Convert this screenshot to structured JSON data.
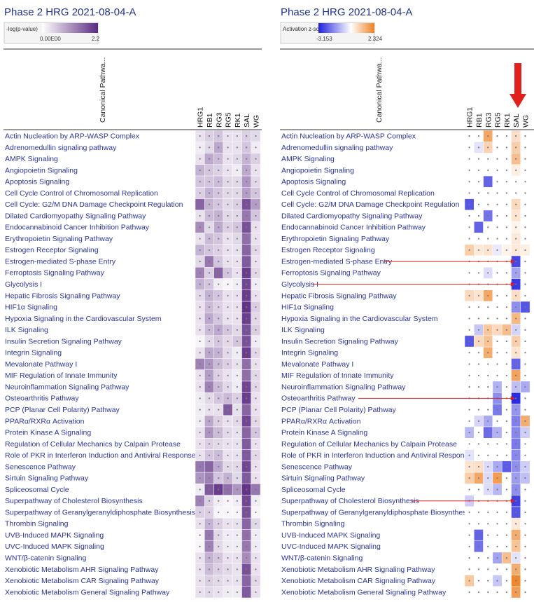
{
  "chart_data": [
    {
      "type": "heatmap",
      "title": "Phase 2 HRG 2021-08-04-A",
      "legend_label": "-log(p-value)",
      "legend_min": "0.00E00",
      "legend_max": "2.2",
      "row_header": "Canonical Pathwa...",
      "columns": [
        "HRG1",
        "RB1",
        "RG3",
        "RG5",
        "RK1",
        "SAL",
        "WG"
      ],
      "rows": [
        "Actin Nucleation by ARP-WASP Complex",
        "Adrenomedullin signaling pathway",
        "AMPK Signaling",
        "Angiopoietin Signaling",
        "Apoptosis Signaling",
        "Cell Cycle Control of Chromosomal Replication",
        "Cell Cycle: G2/M DNA Damage Checkpoint Regulation",
        "Dilated Cardiomyopathy Signaling Pathway",
        "Endocannabinoid Cancer Inhibition Pathway",
        "Erythropoietin Signaling Pathway",
        "Estrogen Receptor Signaling",
        "Estrogen-mediated S-phase Entry",
        "Ferroptosis Signaling Pathway",
        "Glycolysis I",
        "Hepatic Fibrosis Signaling Pathway",
        "HIF1α Signaling",
        "Hypoxia Signaling in the Cardiovascular System",
        "ILK Signaling",
        "Insulin Secretion Signaling Pathway",
        "Integrin Signaling",
        "Mevalonate Pathway I",
        "MIF Regulation of Innate Immunity",
        "Neuroinflammation Signaling Pathway",
        "Osteoarthritis Pathway",
        "PCP (Planar Cell Polarity) Pathway",
        "PPARα/RXRα Activation",
        "Protein Kinase A Signaling",
        "Regulation of Cellular Mechanics by Calpain Protease",
        "Role of PKR in Interferon Induction and Antiviral Response",
        "Senescence Pathway",
        "Sirtuin Signaling Pathway",
        "Spliceosomal Cycle",
        "Superpathway of Cholesterol Biosynthesis",
        "Superpathway of Geranylgeranyldiphosphate Biosynthesis I (...",
        "Thrombin Signaling",
        "UVB-Induced MAPK Signaling",
        "UVC-Induced MAPK Signaling",
        "WNT/β-catenin Signaling",
        "Xenobiotic Metabolism AHR Signaling Pathway",
        "Xenobiotic Metabolism CAR Signaling Pathway",
        "Xenobiotic Metabolism General Signaling Pathway"
      ],
      "scale": [
        0,
        2.2
      ],
      "colors": {
        "low": "#ffffff",
        "high": "#5b2a82"
      },
      "values": [
        [
          0.3,
          0.5,
          0.6,
          0.3,
          0.3,
          0.5,
          0.4
        ],
        [
          0.2,
          0.4,
          0.9,
          0.3,
          0.3,
          0.6,
          0.2
        ],
        [
          0.3,
          0.9,
          0.7,
          0.3,
          0.4,
          0.8,
          0.5
        ],
        [
          0.8,
          0.6,
          0.5,
          0.3,
          0.2,
          0.9,
          0.3
        ],
        [
          0.6,
          0.6,
          0.7,
          0.4,
          0.4,
          1.1,
          0.4
        ],
        [
          0.5,
          0.8,
          0.6,
          0.4,
          0.4,
          1.0,
          0.6
        ],
        [
          1.6,
          0.8,
          0.6,
          0.4,
          0.5,
          1.8,
          1.0
        ],
        [
          0.3,
          0.7,
          0.8,
          0.4,
          0.4,
          1.4,
          0.6
        ],
        [
          1.2,
          0.4,
          0.9,
          0.5,
          0.6,
          1.8,
          0.3
        ],
        [
          0.3,
          0.7,
          0.6,
          0.3,
          0.4,
          1.5,
          0.3
        ],
        [
          0.8,
          0.6,
          0.5,
          0.3,
          0.3,
          1.6,
          0.4
        ],
        [
          0.4,
          1.4,
          0.6,
          0.3,
          0.3,
          1.7,
          0.3
        ],
        [
          1.3,
          0.5,
          1.6,
          0.6,
          0.3,
          2.0,
          0.4
        ],
        [
          0.8,
          0.6,
          0.2,
          0.1,
          0.2,
          1.9,
          0.2
        ],
        [
          0.4,
          0.8,
          0.6,
          0.3,
          0.3,
          2.0,
          0.3
        ],
        [
          0.3,
          0.7,
          0.5,
          0.3,
          0.3,
          2.1,
          0.5
        ],
        [
          0.3,
          0.9,
          0.6,
          0.3,
          0.3,
          2.0,
          0.4
        ],
        [
          0.3,
          0.7,
          0.9,
          0.6,
          0.4,
          1.8,
          0.5
        ],
        [
          0.1,
          0.4,
          0.6,
          0.4,
          0.6,
          1.8,
          0.2
        ],
        [
          0.3,
          0.9,
          0.8,
          0.4,
          0.2,
          2.0,
          0.4
        ],
        [
          1.3,
          1.1,
          0.7,
          0.5,
          0.3,
          1.5,
          0.3
        ],
        [
          0.3,
          1.0,
          0.5,
          0.3,
          0.2,
          1.5,
          0.4
        ],
        [
          0.3,
          1.3,
          0.7,
          0.4,
          0.2,
          1.9,
          0.4
        ],
        [
          0.2,
          0.4,
          0.6,
          0.7,
          0.5,
          2.0,
          0.3
        ],
        [
          0.2,
          0.3,
          0.3,
          1.7,
          0.3,
          1.6,
          0.3
        ],
        [
          0.2,
          0.9,
          0.5,
          0.3,
          0.4,
          1.9,
          0.4
        ],
        [
          0.3,
          1.1,
          0.7,
          0.4,
          0.3,
          1.6,
          0.6
        ],
        [
          0.3,
          0.5,
          0.4,
          0.3,
          0.3,
          1.7,
          0.3
        ],
        [
          0.3,
          0.6,
          0.7,
          0.3,
          0.3,
          1.7,
          0.4
        ],
        [
          1.4,
          1.6,
          0.9,
          0.4,
          0.4,
          1.9,
          0.3
        ],
        [
          1.1,
          1.3,
          0.6,
          0.8,
          0.4,
          1.7,
          0.3
        ],
        [
          0.2,
          1.7,
          2.0,
          1.5,
          1.1,
          2.1,
          1.4
        ],
        [
          1.3,
          0.5,
          0.2,
          0.1,
          0.2,
          1.9,
          0.2
        ],
        [
          0.5,
          0.5,
          0.1,
          0.1,
          0.1,
          1.8,
          0.1
        ],
        [
          0.3,
          0.8,
          0.5,
          0.3,
          0.3,
          1.6,
          0.4
        ],
        [
          0.1,
          1.4,
          0.4,
          0.2,
          0.2,
          1.5,
          0.2
        ],
        [
          0.1,
          1.3,
          0.4,
          0.2,
          0.2,
          1.4,
          0.2
        ],
        [
          0.3,
          0.8,
          0.6,
          0.3,
          0.3,
          1.2,
          0.3
        ],
        [
          0.3,
          0.7,
          0.5,
          0.4,
          0.3,
          1.8,
          0.3
        ],
        [
          0.3,
          0.5,
          0.4,
          0.3,
          0.3,
          1.6,
          0.4
        ],
        [
          0.3,
          0.4,
          0.3,
          0.2,
          0.2,
          1.7,
          0.3
        ]
      ]
    },
    {
      "type": "heatmap",
      "title": "Phase 2 HRG 2021-08-04-A",
      "legend_label": "Activation z-score",
      "legend_min": "-3.153",
      "legend_max": "2.324",
      "row_header": "Canonical Pathwa...",
      "columns": [
        "HRG1",
        "RB1",
        "RG3",
        "RG5",
        "RK1",
        "SAL",
        "WG"
      ],
      "rows": [
        "Actin Nucleation by ARP-WASP Complex",
        "Adrenomedullin signaling pathway",
        "AMPK Signaling",
        "Angiopoietin Signaling",
        "Apoptosis Signaling",
        "Cell Cycle Control of Chromosomal Replication",
        "Cell Cycle: G2/M DNA Damage Checkpoint Regulation",
        "Dilated Cardiomyopathy Signaling Pathway",
        "Endocannabinoid Cancer Inhibition Pathway",
        "Erythropoietin Signaling Pathway",
        "Estrogen Receptor Signaling",
        "Estrogen-mediated S-phase Entry",
        "Ferroptosis Signaling Pathway",
        "Glycolysis I",
        "Hepatic Fibrosis Signaling Pathway",
        "HIF1α Signaling",
        "Hypoxia Signaling in the Cardiovascular System",
        "ILK Signaling",
        "Insulin Secretion Signaling Pathway",
        "Integrin Signaling",
        "Mevalonate Pathway I",
        "MIF Regulation of Innate Immunity",
        "Neuroinflammation Signaling Pathway",
        "Osteoarthritis Pathway",
        "PCP (Planar Cell Polarity) Pathway",
        "PPARα/RXRα Activation",
        "Protein Kinase A Signaling",
        "Regulation of Cellular Mechanics by Calpain Protease",
        "Role of PKR in Interferon Induction and Antiviral Response",
        "Senescence Pathway",
        "Sirtuin Signaling Pathway",
        "Spliceosomal Cycle",
        "Superpathway of Cholesterol Biosynthesis",
        "Superpathway of Geranylgeranyldiphosphate Biosynthesis ...",
        "Thrombin Signaling",
        "UVB-Induced MAPK Signaling",
        "UVC-Induced MAPK Signaling",
        "WNT/β-catenin Signaling",
        "Xenobiotic Metabolism AHR Signaling Pathway",
        "Xenobiotic Metabolism CAR Signaling Pathway",
        "Xenobiotic Metabolism General Signaling Pathway"
      ],
      "scale": [
        -3.153,
        2.324
      ],
      "colors": {
        "negative": "#2020e0",
        "zero": "#ffffff",
        "positive": "#f08020"
      },
      "values": [
        [
          null,
          null,
          1.6,
          null,
          null,
          0.6,
          null
        ],
        [
          null,
          -0.4,
          0.8,
          null,
          null,
          0.9,
          null
        ],
        [
          null,
          null,
          null,
          null,
          null,
          1.2,
          null
        ],
        [
          null,
          null,
          null,
          null,
          null,
          0.3,
          null
        ],
        [
          null,
          null,
          -2.2,
          null,
          null,
          null,
          null
        ],
        [
          null,
          null,
          null,
          null,
          null,
          null,
          null
        ],
        [
          -2.4,
          null,
          null,
          null,
          null,
          0.7,
          null
        ],
        [
          null,
          null,
          -2.0,
          null,
          null,
          0.5,
          null
        ],
        [
          null,
          -2.2,
          null,
          null,
          null,
          0.2,
          null
        ],
        [
          null,
          null,
          null,
          null,
          null,
          0.4,
          null
        ],
        [
          0.9,
          0.4,
          0.5,
          -0.3,
          0.2,
          0.4,
          0.3
        ],
        [
          null,
          null,
          null,
          null,
          null,
          -2.6,
          null
        ],
        [
          null,
          null,
          -0.5,
          null,
          null,
          -1.3,
          null
        ],
        [
          null,
          null,
          null,
          null,
          null,
          -2.8,
          null
        ],
        [
          0.7,
          0.5,
          1.6,
          null,
          null,
          0.6,
          null
        ],
        [
          null,
          null,
          null,
          null,
          null,
          -1.6,
          -2.4
        ],
        [
          null,
          null,
          null,
          null,
          null,
          1.3,
          null
        ],
        [
          null,
          -0.8,
          1.0,
          0.7,
          1.2,
          -0.6,
          null
        ],
        [
          -2.4,
          0.7,
          1.1,
          null,
          null,
          0.9,
          null
        ],
        [
          null,
          null,
          1.5,
          null,
          null,
          0.5,
          null
        ],
        [
          null,
          null,
          null,
          null,
          null,
          -2.2,
          null
        ],
        [
          null,
          null,
          null,
          null,
          null,
          1.7,
          null
        ],
        [
          null,
          null,
          null,
          -1.1,
          null,
          -0.9,
          -1.2
        ],
        [
          null,
          null,
          null,
          -1.6,
          null,
          -3.0,
          null
        ],
        [
          null,
          null,
          null,
          -1.9,
          null,
          -1.5,
          null
        ],
        [
          null,
          -0.6,
          -1.2,
          null,
          null,
          -1.8,
          1.5
        ],
        [
          -1.0,
          null,
          -2.1,
          -1.1,
          null,
          -1.7,
          -0.7
        ],
        [
          null,
          null,
          null,
          null,
          null,
          -1.9,
          null
        ],
        [
          -0.4,
          null,
          null,
          null,
          null,
          -1.7,
          null
        ],
        [
          0.5,
          0.6,
          -0.5,
          -1.2,
          -2.3,
          -1.6,
          -0.7
        ],
        [
          0.9,
          1.6,
          -0.5,
          1.8,
          null,
          -1.4,
          -0.9
        ],
        [
          null,
          null,
          -0.5,
          -1.0,
          null,
          -1.6,
          null
        ],
        [
          -0.7,
          null,
          null,
          null,
          null,
          -2.7,
          null
        ],
        [
          null,
          null,
          null,
          null,
          null,
          -2.4,
          null
        ],
        [
          null,
          null,
          null,
          null,
          null,
          0.4,
          null
        ],
        [
          null,
          -2.2,
          null,
          null,
          null,
          1.5,
          null
        ],
        [
          null,
          -2.0,
          null,
          null,
          null,
          1.1,
          null
        ],
        [
          null,
          null,
          null,
          -1.3,
          1.2,
          -0.4,
          null
        ],
        [
          null,
          null,
          null,
          null,
          null,
          1.5,
          null
        ],
        [
          1.0,
          null,
          null,
          -0.8,
          null,
          2.2,
          null
        ],
        [
          null,
          null,
          null,
          null,
          null,
          1.8,
          null
        ]
      ]
    }
  ]
}
